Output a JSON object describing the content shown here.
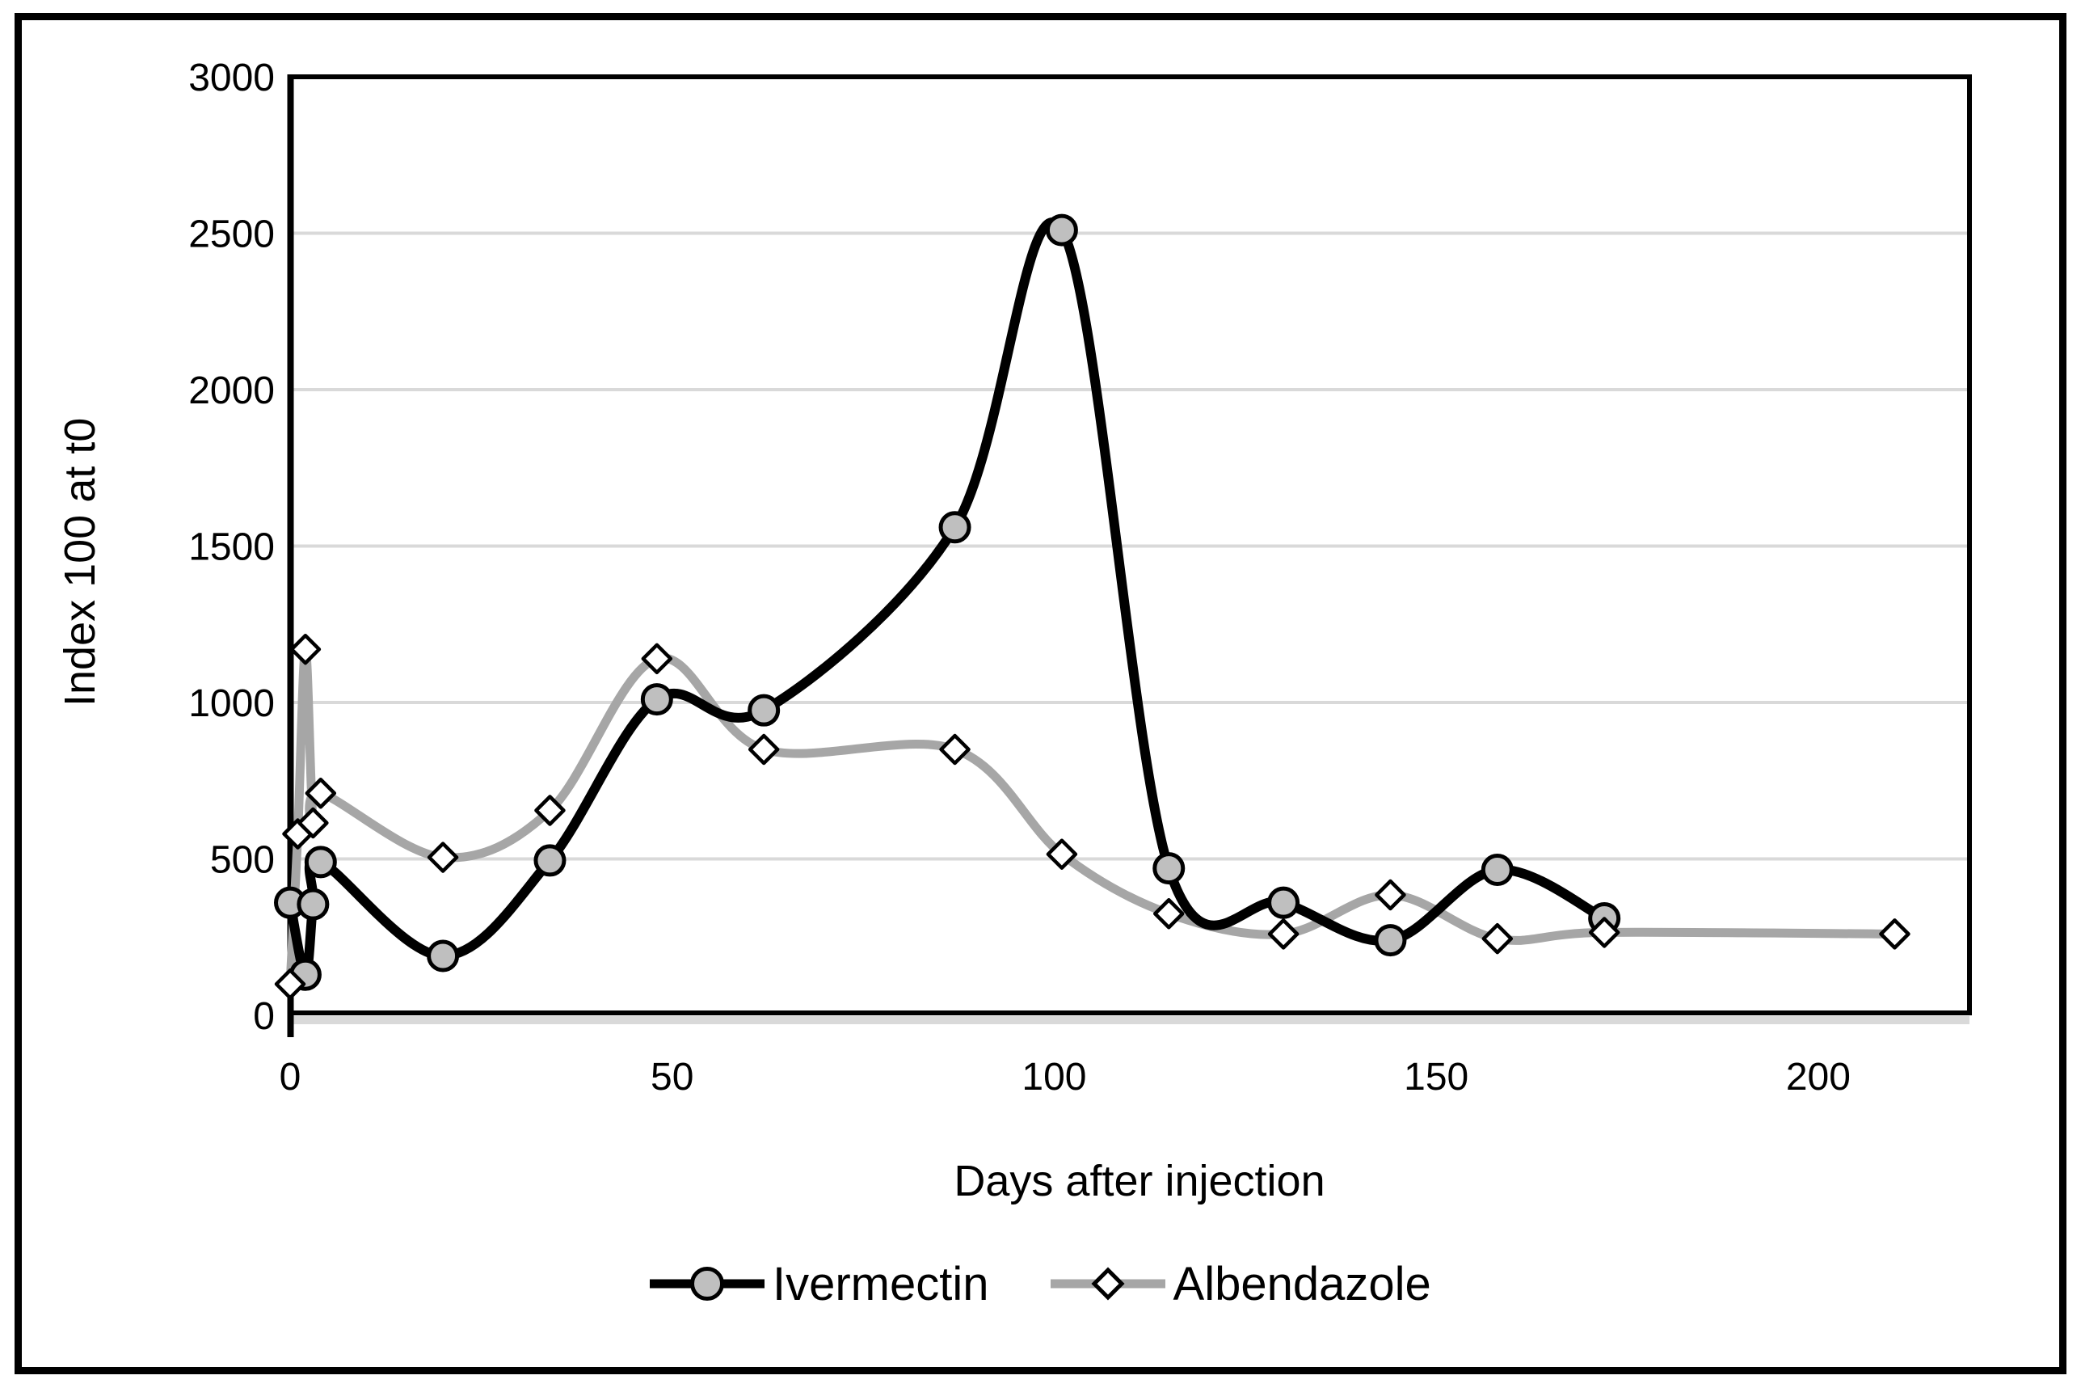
{
  "figure": {
    "background_color": "#ffffff",
    "frame_color": "#000000"
  },
  "chart_data": {
    "type": "line",
    "title": "",
    "xlabel": "Days after injection",
    "ylabel": "Index 100 at t0",
    "xlim": [
      0,
      220
    ],
    "ylim": [
      0,
      3000
    ],
    "x_ticks": [
      0,
      50,
      100,
      150,
      200
    ],
    "y_ticks": [
      0,
      500,
      1000,
      1500,
      2000,
      2500,
      3000
    ],
    "grid": "horizontal",
    "gridline_color": "#d9d9d9",
    "baseline_color": "#d9d9d9",
    "plot_border_color": "#000000",
    "legend_position": "bottom",
    "series": [
      {
        "name": "Ivermectin",
        "line_color": "#000000",
        "marker": "circle",
        "marker_fill": "#bfbfbf",
        "marker_stroke": "#000000",
        "smooth": true,
        "points": [
          [
            0,
            360
          ],
          [
            2,
            130
          ],
          [
            3,
            355
          ],
          [
            4,
            490
          ],
          [
            20,
            190
          ],
          [
            34,
            495
          ],
          [
            48,
            1010
          ],
          [
            62,
            975
          ],
          [
            87,
            1560
          ],
          [
            101,
            2510
          ],
          [
            115,
            470
          ],
          [
            130,
            360
          ],
          [
            144,
            240
          ],
          [
            158,
            465
          ],
          [
            172,
            310
          ]
        ]
      },
      {
        "name": "Albendazole",
        "line_color": "#a6a6a6",
        "marker": "diamond",
        "marker_fill": "#ffffff",
        "marker_stroke": "#000000",
        "smooth": true,
        "points": [
          [
            0,
            100
          ],
          [
            1,
            580
          ],
          [
            2,
            1170
          ],
          [
            3,
            615
          ],
          [
            4,
            710
          ],
          [
            20,
            505
          ],
          [
            34,
            655
          ],
          [
            48,
            1140
          ],
          [
            62,
            850
          ],
          [
            87,
            850
          ],
          [
            101,
            515
          ],
          [
            115,
            325
          ],
          [
            130,
            260
          ],
          [
            144,
            385
          ],
          [
            158,
            245
          ],
          [
            172,
            265
          ],
          [
            210,
            260
          ]
        ]
      }
    ]
  }
}
